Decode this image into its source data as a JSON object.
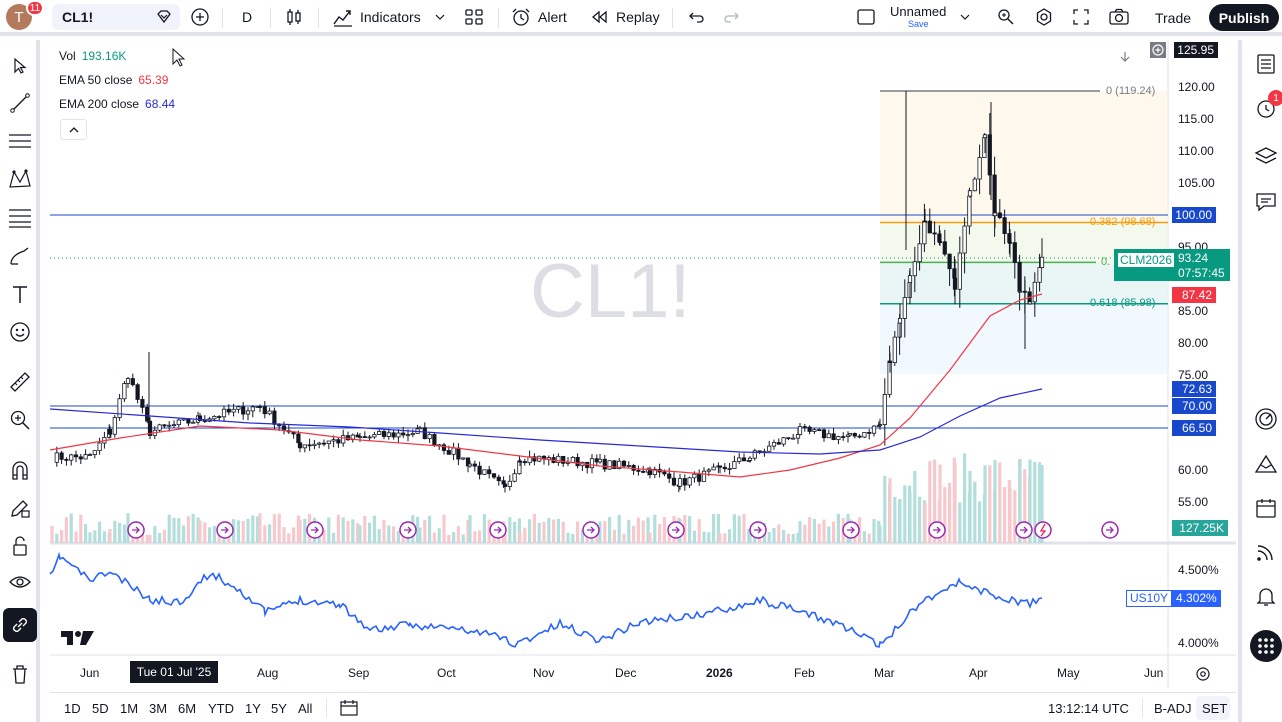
{
  "header": {
    "avatar_letter": "T",
    "notification_count": "11",
    "symbol": "CL1!",
    "interval": "D",
    "indicators_label": "Indicators",
    "alert_label": "Alert",
    "replay_label": "Replay",
    "layout_name": "Unnamed",
    "layout_save": "Save",
    "trade_label": "Trade",
    "publish_label": "Publish"
  },
  "legend": {
    "vol_label": "Vol",
    "vol_value": "193.16K",
    "ema50_label": "EMA 50 close",
    "ema50_value": "65.39",
    "ema200_label": "EMA 200 close",
    "ema200_value": "68.44"
  },
  "watermark": "CL1!",
  "price_axis": [
    "120.00",
    "115.00",
    "110.00",
    "105.00",
    "95.00",
    "85.00",
    "80.00",
    "75.00",
    "60.00",
    "55.00"
  ],
  "price_axis_extra": [
    "125.95",
    "4.500%",
    "4.000%"
  ],
  "tags": {
    "level100": "100.00",
    "clm_label": "CLM2026",
    "last_price": "93.24",
    "countdown": "07:57:45",
    "ema50_tag": "87.42",
    "ema200_tag": "72.63",
    "level70": "70.00",
    "level66": "66.50",
    "volume_tag": "127.25K",
    "us10y_label": "US10Y",
    "us10y_value": "4.302%"
  },
  "fib": {
    "f0": "0 (119.24)",
    "f382": "0.382 (98.68)",
    "f5": "0.",
    "f618": "0.618 (85.98)"
  },
  "time_axis": {
    "jun": "Jun",
    "cursor_date": "Tue 01 Jul '25",
    "aug": "Aug",
    "sep": "Sep",
    "oct": "Oct",
    "nov": "Nov",
    "dec": "Dec",
    "y2026": "2026",
    "feb": "Feb",
    "mar": "Mar",
    "apr": "Apr",
    "may": "May",
    "jun2": "Jun"
  },
  "periods": [
    "1D",
    "5D",
    "1M",
    "3M",
    "6M",
    "YTD",
    "1Y",
    "5Y",
    "All"
  ],
  "status": {
    "clock": "13:12:14 UTC",
    "badj": "B-ADJ",
    "set": "SET"
  },
  "right_badge": "1",
  "colors": {
    "up": "#089981",
    "down": "#f23645",
    "ema50": "#f23645",
    "ema200": "#2a2ad4",
    "us10y": "#2962ff",
    "tag_blue": "#1848cc"
  }
}
